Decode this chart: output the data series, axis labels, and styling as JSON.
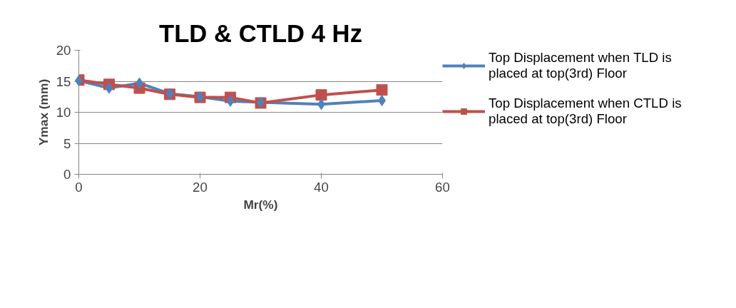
{
  "chart_data": {
    "type": "line",
    "title": "TLD & CTLD 4 Hz",
    "xlabel": "Mr(%)",
    "ylabel": "Ymax (mm)",
    "x": [
      0,
      5,
      10,
      15,
      20,
      25,
      30,
      40,
      50
    ],
    "series": [
      {
        "name": "Top Displacement when TLD is placed at top(3rd) Floor",
        "color": "#4f81bd",
        "marker": "diamond",
        "values": [
          15.1,
          13.9,
          14.7,
          13.0,
          12.5,
          11.8,
          11.6,
          11.3,
          11.9
        ]
      },
      {
        "name": "Top Displacement when CTLD is placed at top(3rd) Floor",
        "color": "#c0504d",
        "marker": "square",
        "values": [
          15.2,
          14.5,
          13.9,
          12.9,
          12.4,
          12.4,
          11.5,
          12.8,
          13.6
        ]
      }
    ],
    "xlim": [
      0,
      60
    ],
    "ylim": [
      0,
      20
    ],
    "xticks": [
      0,
      20,
      40,
      60
    ],
    "yticks": [
      0,
      5,
      10,
      15,
      20
    ],
    "grid": "y",
    "legend": "right",
    "line_style": "solid"
  }
}
